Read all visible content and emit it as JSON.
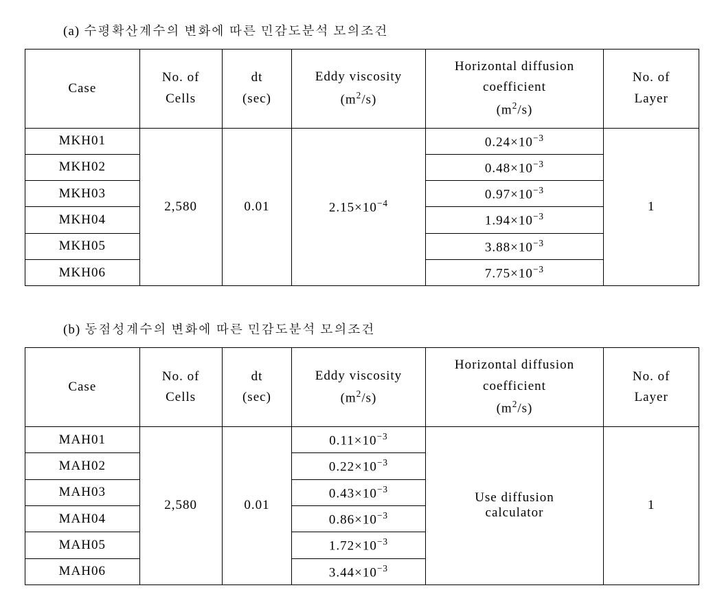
{
  "tableA": {
    "caption": "(a) 수평확산계수의 변화에 따른 민감도분석 모의조건",
    "headers": {
      "case": "Case",
      "cells_l1": "No. of",
      "cells_l2": "Cells",
      "dt_l1": "dt",
      "dt_l2": "(sec)",
      "ev_l1": "Eddy viscosity",
      "ev_unit_pre": "(m",
      "ev_unit_sup": "2",
      "ev_unit_post": "/s)",
      "hd_l1": "Horizontal diffusion",
      "hd_l2": "coefficient",
      "hd_unit_pre": "(m",
      "hd_unit_sup": "2",
      "hd_unit_post": "/s)",
      "layer_l1": "No. of",
      "layer_l2": "Layer"
    },
    "cells": "2,580",
    "dt": "0.01",
    "ev_val": "2.15×10",
    "ev_exp": "−4",
    "layer": "1",
    "rows": [
      {
        "case": "MKH01",
        "hd_val": "0.24×10",
        "hd_exp": "−3"
      },
      {
        "case": "MKH02",
        "hd_val": "0.48×10",
        "hd_exp": "−3"
      },
      {
        "case": "MKH03",
        "hd_val": "0.97×10",
        "hd_exp": "−3"
      },
      {
        "case": "MKH04",
        "hd_val": "1.94×10",
        "hd_exp": "−3"
      },
      {
        "case": "MKH05",
        "hd_val": "3.88×10",
        "hd_exp": "−3"
      },
      {
        "case": "MKH06",
        "hd_val": "7.75×10",
        "hd_exp": "−3"
      }
    ]
  },
  "tableB": {
    "caption": "(b) 동점성계수의 변화에 따른 민감도분석 모의조건",
    "headers": {
      "case": "Case",
      "cells_l1": "No. of",
      "cells_l2": "Cells",
      "dt_l1": "dt",
      "dt_l2": "(sec)",
      "ev_l1": "Eddy viscosity",
      "ev_unit_pre": "(m",
      "ev_unit_sup": "2",
      "ev_unit_post": "/s)",
      "hd_l1": "Horizontal diffusion",
      "hd_l2": "coefficient",
      "hd_unit_pre": "(m",
      "hd_unit_sup": "2",
      "hd_unit_post": "/s)",
      "layer_l1": "No. of",
      "layer_l2": "Layer"
    },
    "cells": "2,580",
    "dt": "0.01",
    "hd_text_l1": "Use diffusion",
    "hd_text_l2": "calculator",
    "layer": "1",
    "rows": [
      {
        "case": "MAH01",
        "ev_val": "0.11×10",
        "ev_exp": "−3"
      },
      {
        "case": "MAH02",
        "ev_val": "0.22×10",
        "ev_exp": "−3"
      },
      {
        "case": "MAH03",
        "ev_val": "0.43×10",
        "ev_exp": "−3"
      },
      {
        "case": "MAH04",
        "ev_val": "0.86×10",
        "ev_exp": "−3"
      },
      {
        "case": "MAH05",
        "ev_val": "1.72×10",
        "ev_exp": "−3"
      },
      {
        "case": "MAH06",
        "ev_val": "3.44×10",
        "ev_exp": "−3"
      }
    ]
  }
}
